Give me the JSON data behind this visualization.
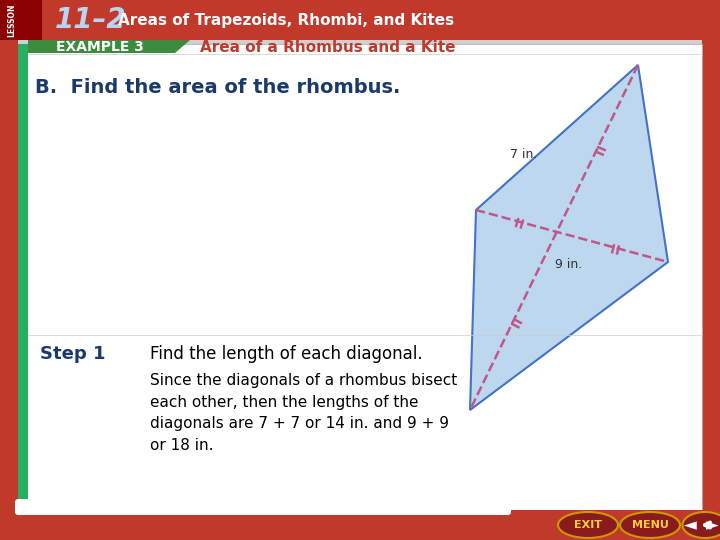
{
  "bg_color": "#d0d0d0",
  "header_bg": "#c0392b",
  "header_tab_bg": "#8B0000",
  "header_lesson": "LESSON",
  "header_num": "11–2",
  "header_subtitle": "Areas of Trapezoids, Rhombi, and Kites",
  "header_text_color": "#ffffff",
  "header_num_color": "#b8d4f0",
  "example_label": "EXAMPLE 3",
  "example_label_bg": "#3d8b3d",
  "example_title": "Area of a Rhombus and a Kite",
  "example_title_color": "#c0392b",
  "main_question": "B.  Find the area of the rhombus.",
  "main_question_color": "#1a3a6b",
  "step_label": "Step 1",
  "step_label_color": "#1a3a6b",
  "step_text1": "Find the length of each diagonal.",
  "step_text2": "Since the diagonals of a rhombus bisect\neach other, then the lengths of the\ndiagonals are 7 + 7 or 14 in. and 9 + 9\nor 18 in.",
  "rhombus_fill": "#bdd7ee",
  "rhombus_border": "#4472c4",
  "diagonal_color": "#c0578a",
  "label_7": "7 in.",
  "label_9": "9 in.",
  "content_bg": "#ffffff",
  "sidebar_color": "#27ae60",
  "red_side_color": "#c0392b",
  "bottom_bar_color": "#c0392b",
  "exit_btn_color": "#8b1a1a",
  "menu_btn_color": "#8b1a1a",
  "nav_btn_color": "#8b1a1a"
}
